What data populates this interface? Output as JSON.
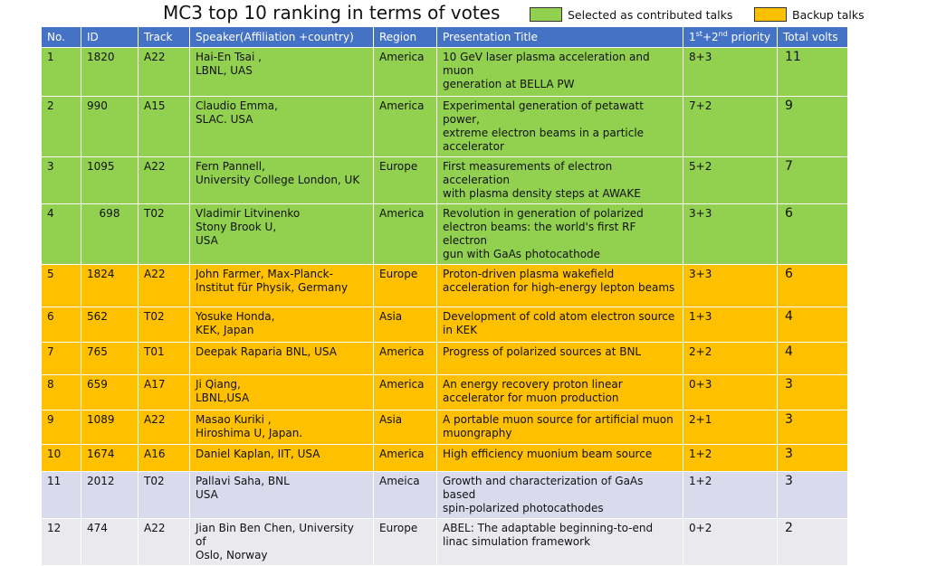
{
  "title": "MC3 top 10  ranking in terms of votes",
  "legend": [
    {
      "label": "Selected as contributed talks",
      "color": "#92d050"
    },
    {
      "label": "Backup talks",
      "color": "#ffc000"
    }
  ],
  "table": {
    "headers": {
      "no": "No.",
      "id": "ID",
      "track": "Track",
      "speaker": "Speaker(Affiliation +country)",
      "region": "Region",
      "title": "Presentation Title",
      "priority_p1": "1",
      "priority_s1": "st",
      "priority_p2": "+2",
      "priority_s2": "nd",
      "priority_p3": " priority",
      "volts": "Total volts"
    },
    "rows": [
      {
        "no": "1",
        "id": "1820",
        "track": "A22",
        "speaker": [
          "Hai-En Tsai ,",
          "LBNL, UAS"
        ],
        "region": "America",
        "title": [
          "10 GeV laser plasma acceleration and muon",
          "generation at BELLA PW"
        ],
        "priority": "8+3",
        "volts": "11"
      },
      {
        "no": "2",
        "id": "990",
        "track": "A15",
        "speaker": [
          "Claudio Emma,",
          "SLAC. USA"
        ],
        "region": "America",
        "title": [
          "Experimental generation of petawatt power,",
          "extreme electron beams in a particle",
          "accelerator"
        ],
        "priority": "7+2",
        "volts": "9"
      },
      {
        "no": "3",
        "id": "1095",
        "track": "A22",
        "speaker": [
          "Fern Pannell,",
          "University College London, UK"
        ],
        "region": "Europe",
        "title": [
          "First measurements of electron acceleration",
          "with plasma density steps at AWAKE"
        ],
        "priority": "5+2",
        "volts": "7"
      },
      {
        "no": "4",
        "id": "698",
        "track": "T02",
        "speaker": [
          "Vladimir Litvinenko",
          "Stony Brook U,",
          "USA"
        ],
        "region": "America",
        "title": [
          "Revolution in generation of polarized",
          "electron beams: the world's first RF electron",
          "gun with GaAs photocathode"
        ],
        "priority": "3+3",
        "volts": "6"
      },
      {
        "no": "5",
        "id": "1824",
        "track": "A22",
        "speaker": [
          "John Farmer, Max-Planck-",
          "Institut für Physik, Germany"
        ],
        "region": "Europe",
        "title": [
          "Proton-driven plasma wakefield",
          "acceleration for high-energy lepton beams"
        ],
        "priority": "3+3",
        "volts": "6"
      },
      {
        "no": "6",
        "id": "562",
        "track": "T02",
        "speaker": [
          "Yosuke Honda,",
          "KEK, Japan"
        ],
        "region": "Asia",
        "title": [
          "Development of cold atom electron source",
          "in KEK"
        ],
        "priority": "1+3",
        "volts": "4"
      },
      {
        "no": "7",
        "id": "765",
        "track": "T01",
        "speaker": [
          "Deepak Raparia BNL, USA"
        ],
        "region": "America",
        "title": [
          "Progress of polarized sources at BNL"
        ],
        "priority": "2+2",
        "volts": "4"
      },
      {
        "no": "8",
        "id": "659",
        "track": "A17",
        "speaker": [
          "Ji Qiang,",
          "LBNL,USA"
        ],
        "region": "America",
        "title": [
          "An energy recovery proton linear",
          "accelerator for muon production"
        ],
        "priority": "0+3",
        "volts": "3"
      },
      {
        "no": "9",
        "id": "1089",
        "track": "A22",
        "speaker": [
          "Masao Kuriki ,",
          "Hiroshima U, Japan."
        ],
        "region": "Asia",
        "title": [
          "A portable muon source for artificial muon",
          "muongraphy"
        ],
        "priority": "2+1",
        "volts": "3"
      },
      {
        "no": "10",
        "id": "1674",
        "track": "A16",
        "speaker": [
          "Daniel Kaplan, IIT, USA"
        ],
        "region": "America",
        "title": [
          "High efficiency muonium beam source"
        ],
        "priority": "1+2",
        "volts": "3"
      },
      {
        "no": "11",
        "id": "2012",
        "track": "T02",
        "speaker": [
          "Pallavi Saha, BNL",
          "USA"
        ],
        "region": "Ameica",
        "title": [
          "Growth and characterization of GaAs based",
          "spin-polarized photocathodes"
        ],
        "priority": "1+2",
        "volts": "3"
      },
      {
        "no": "12",
        "id": "474",
        "track": "A22",
        "speaker": [
          "Jian Bin Ben Chen, University of",
          "Oslo, Norway"
        ],
        "region": "Europe",
        "title": [
          "ABEL: The adaptable beginning-to-end",
          "linac simulation framework"
        ],
        "priority": "0+2",
        "volts": "2"
      }
    ]
  }
}
